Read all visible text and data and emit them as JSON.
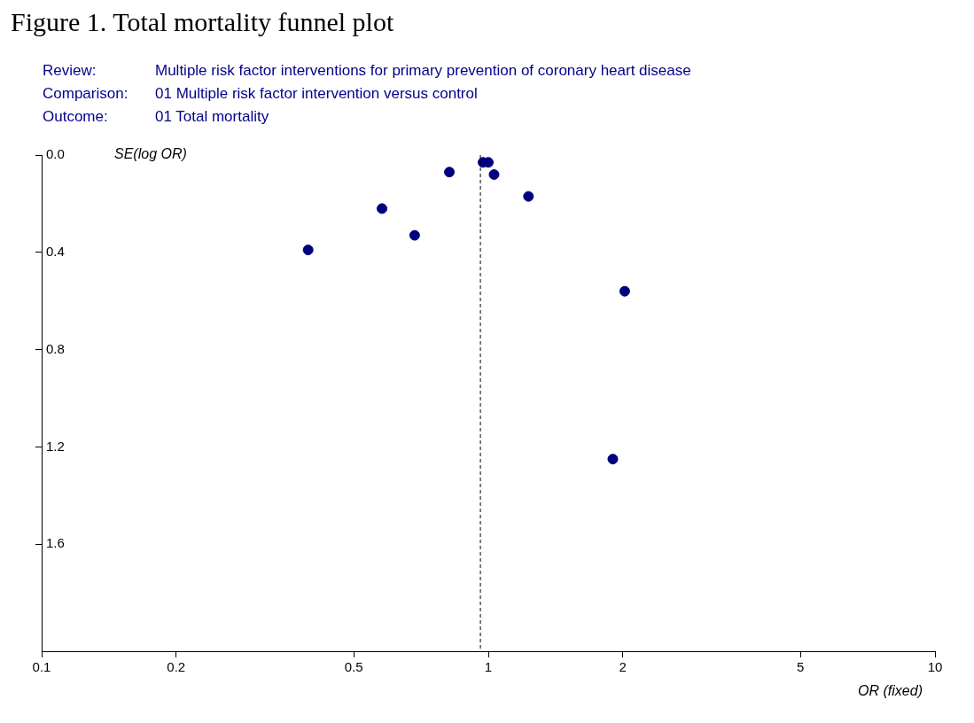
{
  "chart_data": {
    "type": "scatter",
    "title": "Figure 1. Total mortality funnel plot",
    "annotations": [
      "Review: Multiple risk factor interventions for primary prevention of coronary heart disease",
      "Comparison: 01 Multiple risk factor intervention versus control",
      "Outcome: 01 Total mortality"
    ],
    "xlabel": "OR (fixed)",
    "ylabel": "SE(log OR)",
    "x": [
      0.395,
      0.578,
      0.684,
      0.818,
      0.973,
      1.0,
      1.03,
      1.23,
      2.02,
      1.9
    ],
    "values": [
      0.39,
      0.22,
      0.33,
      0.07,
      0.03,
      0.03,
      0.08,
      0.17,
      0.56,
      1.25
    ],
    "color": "#00007f",
    "marker": "circle",
    "log": "x",
    "grid": false,
    "legend": false,
    "xlim": [
      0.1,
      10
    ],
    "xticks": [
      0.1,
      0.2,
      0.5,
      1,
      2,
      5,
      10
    ],
    "ylim": [
      2.04,
      0
    ],
    "yticks": [
      {
        "value": 0,
        "label": "0.0"
      },
      {
        "value": 0.4,
        "label": "0.4"
      },
      {
        "value": 0.8,
        "label": "0.8"
      },
      {
        "value": 1.2,
        "label": "1.2"
      },
      {
        "value": 1.6,
        "label": "1.6"
      }
    ],
    "ref_lines": [
      {
        "axis": "x",
        "value": 0.96,
        "line_style": "dashed"
      }
    ]
  }
}
